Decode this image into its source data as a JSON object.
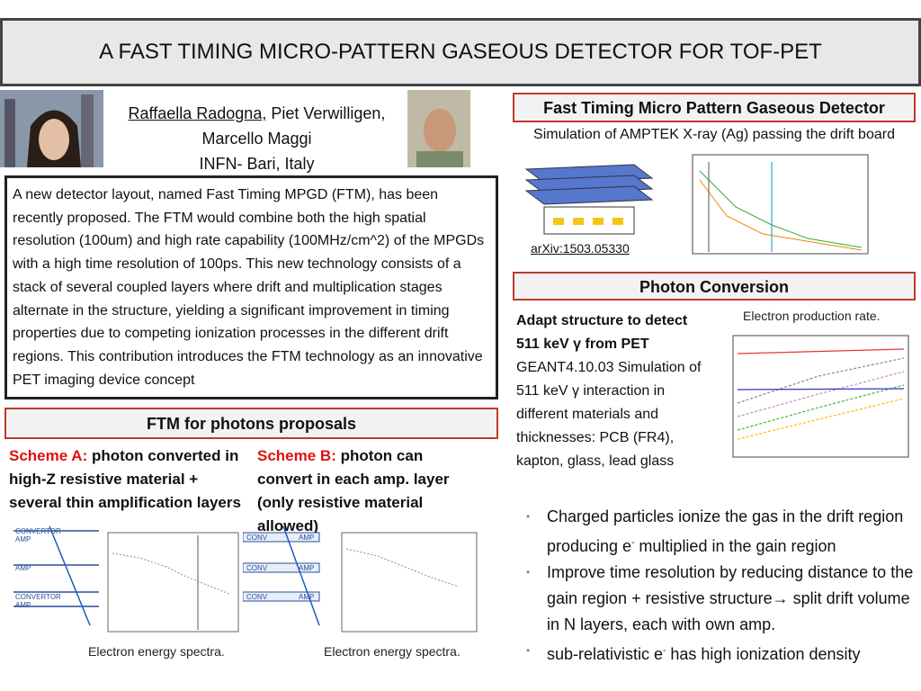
{
  "header": {
    "title": "A FAST TIMING MICRO-PATTERN GASEOUS DETECTOR FOR TOF-PET"
  },
  "authors": {
    "presenter": "Raffaella Radogna,",
    "others": "Piet Verwilligen, Marcello Maggi",
    "affiliation": "INFN- Bari, Italy"
  },
  "abstract": "A new detector layout, named Fast Timing MPGD (FTM), has been recently proposed. The FTM would combine both the high spatial resolution (100um) and high rate capability (100MHz/cm^2) of the MPGDs with a high time resolution of 100ps. This new technology consists of a stack of several coupled layers where drift and multiplication stages alternate in the structure, yielding a significant improvement in timing properties due to competing ionization processes in the different drift regions. This contribution introduces the FTM technology as an innovative PET imaging device concept",
  "proposals": {
    "title": "FTM for photons proposals",
    "scheme_a": {
      "label": "Scheme A:",
      "text": "photon converted in high-Z resistive material + several thin amplification layers",
      "diagram": [
        "CONVERTOR",
        "AMP",
        "AMP",
        "CONVERTOR",
        "AMP"
      ],
      "caption": "Electron energy spectra."
    },
    "scheme_b": {
      "label": "Scheme B:",
      "text": "photon can convert in each amp. layer (only resistive material allowed)",
      "diagram": [
        "CONV",
        "AMP",
        "CONV",
        "AMP",
        "CONV",
        "AMP"
      ],
      "caption": "Electron energy spectra."
    }
  },
  "ftm": {
    "title": "Fast Timing Micro Pattern Gaseous Detector",
    "subtitle": "Simulation of AMPTEK X-ray (Ag) passing the drift board",
    "link": "arXiv:1503.05330"
  },
  "photon": {
    "title": "Photon Conversion",
    "lead": "Adapt structure to detect 511 keV γ from PET",
    "text": "GEANT4.10.03 Simulation of 511 keV γ interaction in different materials and thicknesses: PCB (FR4), kapton, glass, lead glass",
    "plot_caption": "Electron production rate."
  },
  "bullets": [
    [
      "Charged particles ionize the gas in the drift region producing e",
      "-",
      " multiplied in the gain region"
    ],
    [
      "Improve time resolution by reducing distance to the gain region + resistive structure→ split drift volume in N layers, each with own amp."
    ],
    [
      "sub-relativistic e",
      "-",
      " has high ionization density"
    ]
  ]
}
